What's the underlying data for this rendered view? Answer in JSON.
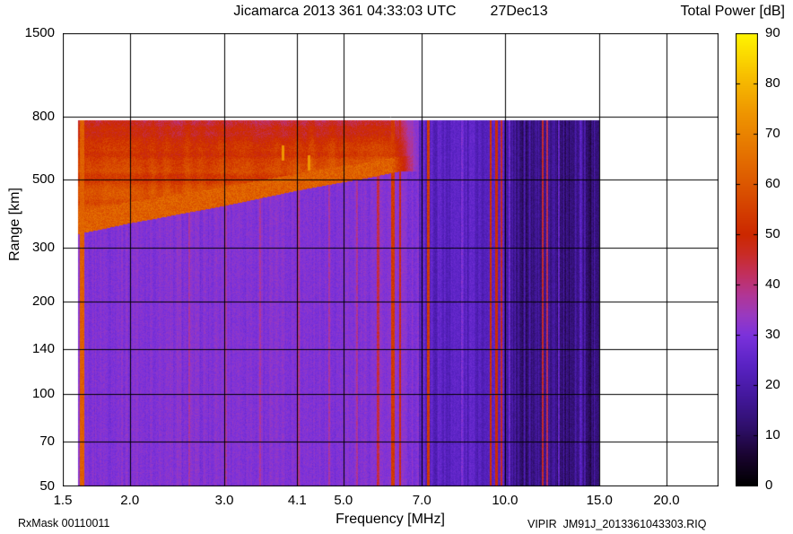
{
  "header": {
    "title": "Jicamarca 2013 361 04:33:03 UTC",
    "date": "27Dec13"
  },
  "colorbar": {
    "title": "Total Power [dB]",
    "min_db": 0,
    "max_db": 90,
    "tick_labels": [
      "90",
      "80",
      "70",
      "60",
      "50",
      "40",
      "30",
      "20",
      "10",
      "0"
    ]
  },
  "axes": {
    "x": {
      "label": "Frequency [MHz]",
      "scale": "log",
      "range_mhz": [
        1.5,
        25.0
      ],
      "tick_values": [
        1.5,
        2.0,
        3.0,
        4.1,
        5.0,
        7.0,
        10.0,
        15.0,
        20.0
      ],
      "tick_labels": [
        "1.5",
        "2.0",
        "3.0",
        "4.1",
        "5.0",
        "7.0",
        "10.0",
        "15.0",
        "20.0"
      ]
    },
    "y": {
      "label": "Range [km]",
      "scale": "log",
      "range_km": [
        50,
        1500
      ],
      "tick_values": [
        1500,
        800,
        500,
        300,
        200,
        140,
        100,
        70,
        50
      ],
      "tick_labels": [
        "1500",
        "800",
        "500",
        "300",
        "200",
        "140",
        "100",
        "70",
        "50"
      ]
    }
  },
  "footer": {
    "left": "RxMask 00110011",
    "right": "VIPIR  JM91J_2013361043303.RIQ"
  },
  "chart_data": {
    "type": "heatmap",
    "title": "Jicamarca 2013 361 04:33:03 UTC 27Dec13",
    "xlabel": "Frequency [MHz]",
    "ylabel": "Range [km]",
    "zlabel": "Total Power [dB]",
    "x_scale": "log",
    "y_scale": "log",
    "x_range_mhz": [
      1.5,
      25.0
    ],
    "y_range_km": [
      50,
      1500
    ],
    "z_range_db": [
      0,
      90
    ],
    "grid": true,
    "data_extent": {
      "f_min_mhz": 1.6,
      "f_max_mhz": 15.0,
      "range_min_km": 50,
      "range_max_km": 780
    },
    "background_power_db": {
      "f_below_7mhz": 31,
      "f_7_to_10mhz": 24,
      "f_above_10mhz": 15
    },
    "echo_trace": {
      "description": "ionospheric echo arc with spread-F above it, fading out near 6.5 MHz",
      "points_mhz_km": [
        [
          1.6,
          350
        ],
        [
          2.0,
          378
        ],
        [
          2.5,
          405
        ],
        [
          3.0,
          428
        ],
        [
          3.5,
          452
        ],
        [
          4.1,
          478
        ],
        [
          4.5,
          492
        ],
        [
          5.0,
          508
        ],
        [
          5.5,
          522
        ],
        [
          6.0,
          538
        ],
        [
          6.4,
          550
        ]
      ],
      "peak_power_db": 65,
      "spread_top_km": 780,
      "spread_power_db": 47
    },
    "echo_marks": [
      {
        "f_mhz": 3.85,
        "range_km": [
          575,
          645
        ],
        "power_db": 74
      },
      {
        "f_mhz": 4.3,
        "range_km": [
          535,
          600
        ],
        "power_db": 74
      }
    ],
    "rfi_stripes": [
      {
        "f_mhz": 1.63,
        "width_mhz": 0.02,
        "power_db": 62
      },
      {
        "f_mhz": 2.58,
        "width_mhz": 0.015,
        "power_db": 37
      },
      {
        "f_mhz": 3.02,
        "width_mhz": 0.02,
        "power_db": 37
      },
      {
        "f_mhz": 3.5,
        "width_mhz": 0.015,
        "power_db": 37
      },
      {
        "f_mhz": 4.13,
        "width_mhz": 0.025,
        "power_db": 38
      },
      {
        "f_mhz": 4.7,
        "width_mhz": 0.015,
        "power_db": 37
      },
      {
        "f_mhz": 5.3,
        "width_mhz": 0.02,
        "power_db": 38
      },
      {
        "f_mhz": 5.8,
        "width_mhz": 0.03,
        "power_db": 44
      },
      {
        "f_mhz": 6.18,
        "width_mhz": 0.06,
        "power_db": 54
      },
      {
        "f_mhz": 6.38,
        "width_mhz": 0.04,
        "power_db": 48
      },
      {
        "f_mhz": 7.2,
        "width_mhz": 0.06,
        "power_db": 54
      },
      {
        "f_mhz": 8.3,
        "width_mhz": 0.03,
        "power_db": 30
      },
      {
        "f_mhz": 9.4,
        "width_mhz": 0.06,
        "power_db": 52
      },
      {
        "f_mhz": 9.65,
        "width_mhz": 0.05,
        "power_db": 50
      },
      {
        "f_mhz": 9.86,
        "width_mhz": 0.04,
        "power_db": 47
      },
      {
        "f_mhz": 10.18,
        "width_mhz": 0.04,
        "power_db": 27
      },
      {
        "f_mhz": 11.76,
        "width_mhz": 0.05,
        "power_db": 46
      },
      {
        "f_mhz": 11.98,
        "width_mhz": 0.04,
        "power_db": 43
      },
      {
        "f_mhz": 12.6,
        "width_mhz": 0.04,
        "power_db": 26
      },
      {
        "f_mhz": 13.8,
        "width_mhz": 0.04,
        "power_db": 24
      }
    ],
    "colormap_stops": [
      [
        0,
        "#000000"
      ],
      [
        6,
        "#1a0430"
      ],
      [
        12,
        "#30106e"
      ],
      [
        18,
        "#44189e"
      ],
      [
        24,
        "#5a23c4"
      ],
      [
        30,
        "#7c32dc"
      ],
      [
        34,
        "#9a3ac0"
      ],
      [
        38,
        "#b23695"
      ],
      [
        42,
        "#c23060"
      ],
      [
        46,
        "#c92c28"
      ],
      [
        50,
        "#cc2800"
      ],
      [
        58,
        "#d94e00"
      ],
      [
        66,
        "#e57200"
      ],
      [
        74,
        "#ef9500"
      ],
      [
        82,
        "#f8c200"
      ],
      [
        90,
        "#fff600"
      ]
    ]
  }
}
